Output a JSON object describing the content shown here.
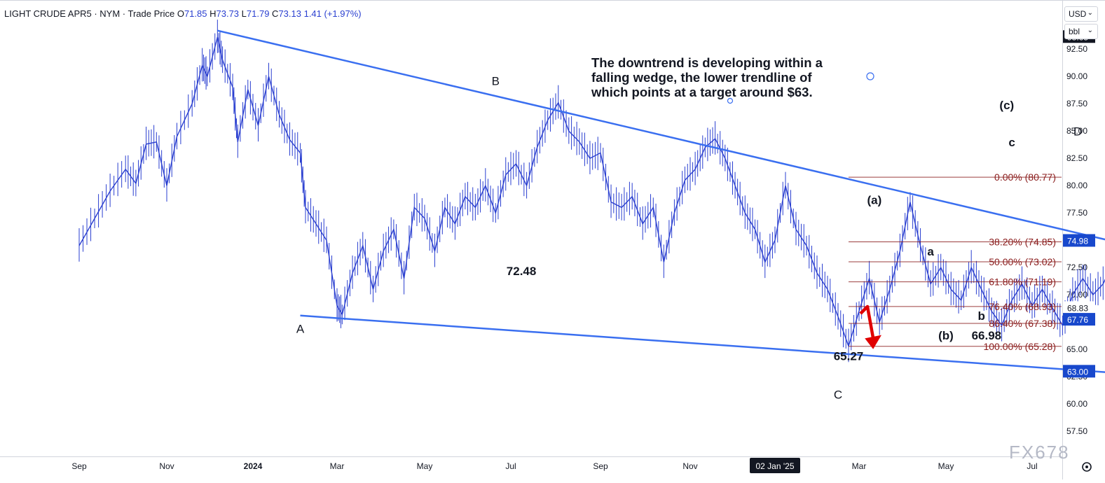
{
  "header": {
    "symbol": "LIGHT CRUDE APR5 · NYM · Trade Price",
    "open_label": "O",
    "open": "71.85",
    "high_label": "H",
    "high": "73.73",
    "low_label": "L",
    "low": "71.79",
    "close_label": "C",
    "close": "73.13",
    "change": "1.41 (+1.97%)"
  },
  "units": {
    "currency": "USD",
    "unit": "bbl"
  },
  "watermark": "FX678",
  "colors": {
    "candle": "#2a3fd0",
    "trendline": "#3a6ff0",
    "fib": "#8a1c1c",
    "arrow": "#e00000",
    "up_text": "#2a3fd0",
    "last_price_bg": "#1848cc"
  },
  "chart_data": {
    "type": "line",
    "title": "",
    "xlabel": "",
    "ylabel": "",
    "ylim": [
      55.2,
      97
    ],
    "x_ticks": [
      "Sep",
      "Nov",
      "2024",
      "Mar",
      "May",
      "Jul",
      "Sep",
      "Nov",
      "02 Jan '25",
      "Mar",
      "May",
      "Jul"
    ],
    "y_ticks": [
      "57.50",
      "60.00",
      "62.50",
      "65.00",
      "67.50",
      "70.00",
      "72.50",
      "75.00",
      "77.50",
      "80.00",
      "82.50",
      "85.00",
      "87.50",
      "90.00",
      "92.50"
    ],
    "price_tags": [
      {
        "value": 93.65,
        "label": "93.65",
        "style": "dark"
      },
      {
        "value": 74.98,
        "label": "74.98",
        "style": "blue"
      },
      {
        "value": 68.83,
        "label": "68.83",
        "style": "plain"
      },
      {
        "value": 67.76,
        "label": "67.76",
        "style": "blue"
      },
      {
        "value": 63.0,
        "label": "63.00",
        "style": "blue"
      }
    ],
    "series": [
      {
        "values": [
          [
            2023.55,
            74.5
          ],
          [
            2023.58,
            77.0
          ],
          [
            2023.61,
            79.5
          ],
          [
            2023.64,
            81.5
          ],
          [
            2023.66,
            80.2
          ],
          [
            2023.68,
            83.8
          ],
          [
            2023.7,
            84.0
          ],
          [
            2023.72,
            80.0
          ],
          [
            2023.74,
            84.5
          ],
          [
            2023.77,
            87.5
          ],
          [
            2023.79,
            91.0
          ],
          [
            2023.8,
            90.0
          ],
          [
            2023.82,
            93.6
          ],
          [
            2023.83,
            91.5
          ],
          [
            2023.85,
            89.0
          ],
          [
            2023.86,
            84.0
          ],
          [
            2023.88,
            88.8
          ],
          [
            2023.9,
            85.5
          ],
          [
            2023.92,
            90.0
          ],
          [
            2023.94,
            86.5
          ],
          [
            2023.96,
            84.2
          ],
          [
            2023.98,
            83.0
          ],
          [
            2023.99,
            78.0
          ],
          [
            2024.01,
            76.5
          ],
          [
            2024.03,
            75.0
          ],
          [
            2024.05,
            69.0
          ],
          [
            2024.06,
            68.2
          ],
          [
            2024.08,
            72.0
          ],
          [
            2024.1,
            74.5
          ],
          [
            2024.12,
            70.5
          ],
          [
            2024.14,
            74.0
          ],
          [
            2024.16,
            76.0
          ],
          [
            2024.18,
            71.5
          ],
          [
            2024.2,
            78.0
          ],
          [
            2024.22,
            77.0
          ],
          [
            2024.24,
            74.0
          ],
          [
            2024.26,
            78.0
          ],
          [
            2024.28,
            76.5
          ],
          [
            2024.3,
            79.0
          ],
          [
            2024.32,
            78.0
          ],
          [
            2024.34,
            80.0
          ],
          [
            2024.36,
            77.5
          ],
          [
            2024.38,
            81.0
          ],
          [
            2024.4,
            82.0
          ],
          [
            2024.42,
            80.0
          ],
          [
            2024.44,
            83.5
          ],
          [
            2024.46,
            86.0
          ],
          [
            2024.48,
            87.6
          ],
          [
            2024.5,
            85.0
          ],
          [
            2024.52,
            84.0
          ],
          [
            2024.54,
            82.5
          ],
          [
            2024.56,
            83.0
          ],
          [
            2024.58,
            78.5
          ],
          [
            2024.6,
            78.0
          ],
          [
            2024.62,
            79.0
          ],
          [
            2024.64,
            76.5
          ],
          [
            2024.66,
            78.0
          ],
          [
            2024.68,
            73.0
          ],
          [
            2024.7,
            77.5
          ],
          [
            2024.72,
            80.5
          ],
          [
            2024.74,
            81.5
          ],
          [
            2024.76,
            83.5
          ],
          [
            2024.78,
            84.3
          ],
          [
            2024.8,
            82.5
          ],
          [
            2024.82,
            80.0
          ],
          [
            2024.84,
            77.5
          ],
          [
            2024.86,
            76.0
          ],
          [
            2024.88,
            73.0
          ],
          [
            2024.9,
            75.0
          ],
          [
            2024.92,
            80.0
          ],
          [
            2024.94,
            76.0
          ],
          [
            2024.96,
            74.5
          ],
          [
            2024.98,
            72.0
          ],
          [
            2025.0,
            70.5
          ],
          [
            2025.02,
            68.0
          ],
          [
            2025.04,
            65.3
          ],
          [
            2025.06,
            68.5
          ],
          [
            2025.08,
            71.5
          ],
          [
            2025.1,
            67.5
          ],
          [
            2025.12,
            70.5
          ],
          [
            2025.14,
            74.0
          ],
          [
            2025.16,
            78.5
          ],
          [
            2025.18,
            74.5
          ],
          [
            2025.2,
            71.0
          ],
          [
            2025.22,
            72.5
          ],
          [
            2025.24,
            70.5
          ],
          [
            2025.26,
            69.5
          ],
          [
            2025.28,
            72.5
          ],
          [
            2025.3,
            70.5
          ],
          [
            2025.32,
            68.5
          ],
          [
            2025.34,
            67.2
          ],
          [
            2025.36,
            69.5
          ],
          [
            2025.38,
            71.0
          ],
          [
            2025.4,
            69.0
          ],
          [
            2025.42,
            70.5
          ],
          [
            2025.44,
            68.8
          ],
          [
            2025.46,
            67.2
          ],
          [
            2025.48,
            70.0
          ],
          [
            2025.5,
            71.5
          ],
          [
            2025.52,
            70.0
          ],
          [
            2025.54,
            71.0
          ],
          [
            2025.56,
            73.0
          ],
          [
            2025.58,
            74.5
          ],
          [
            2025.6,
            76.0
          ],
          [
            2025.62,
            80.7
          ],
          [
            2025.64,
            78.5
          ],
          [
            2025.66,
            76.5
          ],
          [
            2025.68,
            74.0
          ],
          [
            2025.7,
            73.0
          ],
          [
            2025.72,
            71.5
          ],
          [
            2025.74,
            72.5
          ],
          [
            2025.76,
            71.0
          ],
          [
            2025.78,
            70.5
          ],
          [
            2025.8,
            72.0
          ],
          [
            2025.82,
            70.0
          ],
          [
            2025.83,
            68.8
          ]
        ]
      }
    ],
    "x_scale": {
      "ticks_at": [
        2023.55,
        2023.72,
        2023.89,
        2024.05,
        2024.22,
        2024.39,
        2024.56,
        2024.73,
        2024.9,
        2025.06,
        2025.23,
        2025.4
      ]
    },
    "trendlines": [
      {
        "from": [
          2023.82,
          94.2
        ],
        "to": [
          2025.55,
          75.0
        ]
      },
      {
        "from": [
          2023.98,
          68.1
        ],
        "to": [
          2025.58,
          62.8
        ]
      }
    ],
    "fib_levels": [
      {
        "label": "0.00% (80.77)",
        "value": 80.77
      },
      {
        "label": "38.20% (74.85)",
        "value": 74.85
      },
      {
        "label": "50.00% (73.02)",
        "value": 73.02
      },
      {
        "label": "61.80% (71.19)",
        "value": 71.19
      },
      {
        "label": "76.40% (68.93)",
        "value": 68.93
      },
      {
        "label": "86.40% (67.38)",
        "value": 67.38
      },
      {
        "label": "100.00% (65.28)",
        "value": 65.28
      }
    ],
    "annotations": [
      {
        "text": "A",
        "x": 2023.98,
        "y": 66.5,
        "bold": false
      },
      {
        "text": "B",
        "x": 2024.36,
        "y": 89.2,
        "bold": false
      },
      {
        "text": "C",
        "x": 2025.02,
        "y": 60.5,
        "bold": false
      },
      {
        "text": "D",
        "x": 2025.49,
        "y": 84.6,
        "bold": false
      },
      {
        "text": "72.48",
        "x": 2024.41,
        "y": 71.8,
        "bold": true
      },
      {
        "text": "65.27",
        "x": 2025.04,
        "y": 64.0,
        "bold": true
      },
      {
        "text": "66.98",
        "x": 2025.31,
        "y": 65.9,
        "bold": true
      },
      {
        "text": "(a)",
        "x": 2025.09,
        "y": 78.3,
        "bold": true
      },
      {
        "text": "(b)",
        "x": 2025.23,
        "y": 65.9,
        "bold": true
      },
      {
        "text": "(c)",
        "x": 2025.35,
        "y": 87.0,
        "bold": true
      },
      {
        "text": "a",
        "x": 2025.2,
        "y": 73.6,
        "bold": true
      },
      {
        "text": "b",
        "x": 2025.3,
        "y": 67.7,
        "bold": true
      },
      {
        "text": "c",
        "x": 2025.36,
        "y": 83.6,
        "bold": true
      }
    ],
    "note": [
      "The downtrend is developing within a",
      "falling wedge, the lower trendline of",
      "which points at a target around $63."
    ]
  }
}
